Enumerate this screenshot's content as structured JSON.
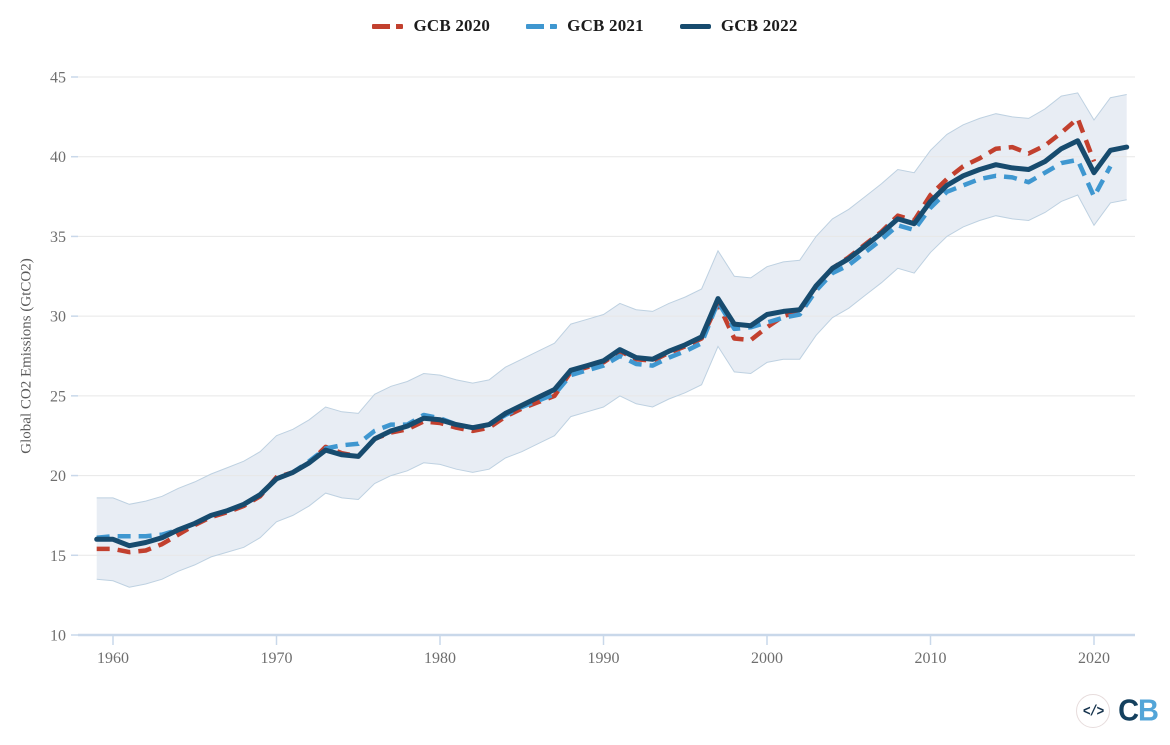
{
  "chart_data": {
    "type": "line",
    "title": "",
    "xlabel": "",
    "ylabel": "Global CO2 Emissions (GtCO2)",
    "xlim": [
      1957.8,
      2023.4
    ],
    "ylim": [
      10,
      45
    ],
    "x_ticks": [
      1960,
      1970,
      1980,
      1990,
      2000,
      2010,
      2020
    ],
    "y_ticks": [
      10,
      15,
      20,
      25,
      30,
      35,
      40,
      45
    ],
    "grid": "horizontal",
    "legend_position": "top-center",
    "series": [
      {
        "name": "GCB 2020",
        "color": "#c2402e",
        "style": "dashed",
        "line_width": 4.5,
        "start_year": 1959,
        "end_year": 2020,
        "values": [
          15.4,
          15.4,
          15.2,
          15.3,
          15.7,
          16.3,
          16.9,
          17.4,
          17.7,
          18.1,
          18.7,
          19.9,
          20.2,
          20.8,
          21.8,
          21.4,
          21.2,
          22.3,
          22.7,
          22.9,
          23.4,
          23.3,
          23.0,
          22.8,
          23.0,
          23.7,
          24.2,
          24.6,
          25.0,
          26.5,
          26.8,
          27.1,
          27.8,
          27.3,
          27.2,
          27.7,
          28.1,
          28.6,
          30.8,
          28.6,
          28.5,
          29.3,
          30.0,
          30.3,
          31.8,
          33.0,
          33.7,
          34.5,
          35.3,
          36.3,
          36.0,
          37.6,
          38.6,
          39.4,
          39.9,
          40.5,
          40.6,
          40.2,
          40.7,
          41.5,
          42.4,
          39.7
        ]
      },
      {
        "name": "GCB 2021",
        "color": "#3f97d0",
        "style": "dashed",
        "line_width": 4.5,
        "start_year": 1959,
        "end_year": 2021,
        "values": [
          16.1,
          16.2,
          16.2,
          16.2,
          16.3,
          16.6,
          17.0,
          17.5,
          17.8,
          18.2,
          18.8,
          19.8,
          20.2,
          20.9,
          21.7,
          21.9,
          22.0,
          22.8,
          23.2,
          23.2,
          23.8,
          23.6,
          23.2,
          23.0,
          23.2,
          23.8,
          24.3,
          24.7,
          25.1,
          26.3,
          26.6,
          26.9,
          27.5,
          27.0,
          26.9,
          27.4,
          27.8,
          28.3,
          30.9,
          29.2,
          29.3,
          29.6,
          29.9,
          30.1,
          31.6,
          32.7,
          33.2,
          34.0,
          34.8,
          35.7,
          35.4,
          36.8,
          37.8,
          38.2,
          38.6,
          38.8,
          38.7,
          38.4,
          39.0,
          39.6,
          39.8,
          37.5,
          39.4
        ]
      },
      {
        "name": "GCB 2022",
        "color": "#174b6e",
        "style": "solid",
        "line_width": 5,
        "start_year": 1959,
        "end_year": 2022,
        "values": [
          16.0,
          16.0,
          15.6,
          15.8,
          16.1,
          16.6,
          17.0,
          17.5,
          17.8,
          18.2,
          18.8,
          19.8,
          20.2,
          20.8,
          21.6,
          21.3,
          21.2,
          22.3,
          22.8,
          23.1,
          23.6,
          23.5,
          23.2,
          23.0,
          23.2,
          23.9,
          24.4,
          24.9,
          25.4,
          26.6,
          26.9,
          27.2,
          27.9,
          27.4,
          27.3,
          27.8,
          28.2,
          28.7,
          31.1,
          29.5,
          29.4,
          30.1,
          30.3,
          30.4,
          31.9,
          33.0,
          33.6,
          34.4,
          35.2,
          36.1,
          35.8,
          37.2,
          38.2,
          38.8,
          39.2,
          39.5,
          39.3,
          39.2,
          39.7,
          40.5,
          41.0,
          39.0,
          40.4,
          40.6
        ]
      }
    ],
    "band": {
      "name": "uncertainty-range",
      "fill": "#e8edf4",
      "edge": "#bed1e1",
      "start_year": 1959,
      "end_year": 2022,
      "lower": [
        13.5,
        13.4,
        13.0,
        13.2,
        13.5,
        14.0,
        14.4,
        14.9,
        15.2,
        15.5,
        16.1,
        17.1,
        17.5,
        18.1,
        18.9,
        18.6,
        18.5,
        19.5,
        20.0,
        20.3,
        20.8,
        20.7,
        20.4,
        20.2,
        20.4,
        21.1,
        21.5,
        22.0,
        22.5,
        23.7,
        24.0,
        24.3,
        25.0,
        24.5,
        24.3,
        24.8,
        25.2,
        25.7,
        28.1,
        26.5,
        26.4,
        27.1,
        27.3,
        27.3,
        28.8,
        29.9,
        30.5,
        31.3,
        32.1,
        33.0,
        32.7,
        34.0,
        35.0,
        35.6,
        36.0,
        36.3,
        36.1,
        36.0,
        36.5,
        37.2,
        37.6,
        35.7,
        37.1,
        37.3
      ],
      "upper": [
        18.6,
        18.6,
        18.2,
        18.4,
        18.7,
        19.2,
        19.6,
        20.1,
        20.5,
        20.9,
        21.5,
        22.5,
        22.9,
        23.5,
        24.3,
        24.0,
        23.9,
        25.1,
        25.6,
        25.9,
        26.4,
        26.3,
        26.0,
        25.8,
        26.0,
        26.8,
        27.3,
        27.8,
        28.3,
        29.5,
        29.8,
        30.1,
        30.8,
        30.4,
        30.3,
        30.8,
        31.2,
        31.7,
        34.1,
        32.5,
        32.4,
        33.1,
        33.4,
        33.5,
        35.0,
        36.1,
        36.7,
        37.5,
        38.3,
        39.2,
        39.0,
        40.4,
        41.4,
        42.0,
        42.4,
        42.7,
        42.5,
        42.4,
        43.0,
        43.8,
        44.0,
        42.3,
        43.7,
        43.9
      ]
    },
    "axis_style": {
      "gridline_color": "#e7e7e7",
      "axis_line_color": "#c9d8ea",
      "tick_label_color": "#6e6e6e"
    }
  },
  "legend": {
    "items": [
      {
        "label": "GCB 2020"
      },
      {
        "label": "GCB 2021"
      },
      {
        "label": "GCB 2022"
      }
    ]
  },
  "footer": {
    "embed_icon": "</>",
    "logo": {
      "c": "C",
      "b": "B"
    }
  }
}
